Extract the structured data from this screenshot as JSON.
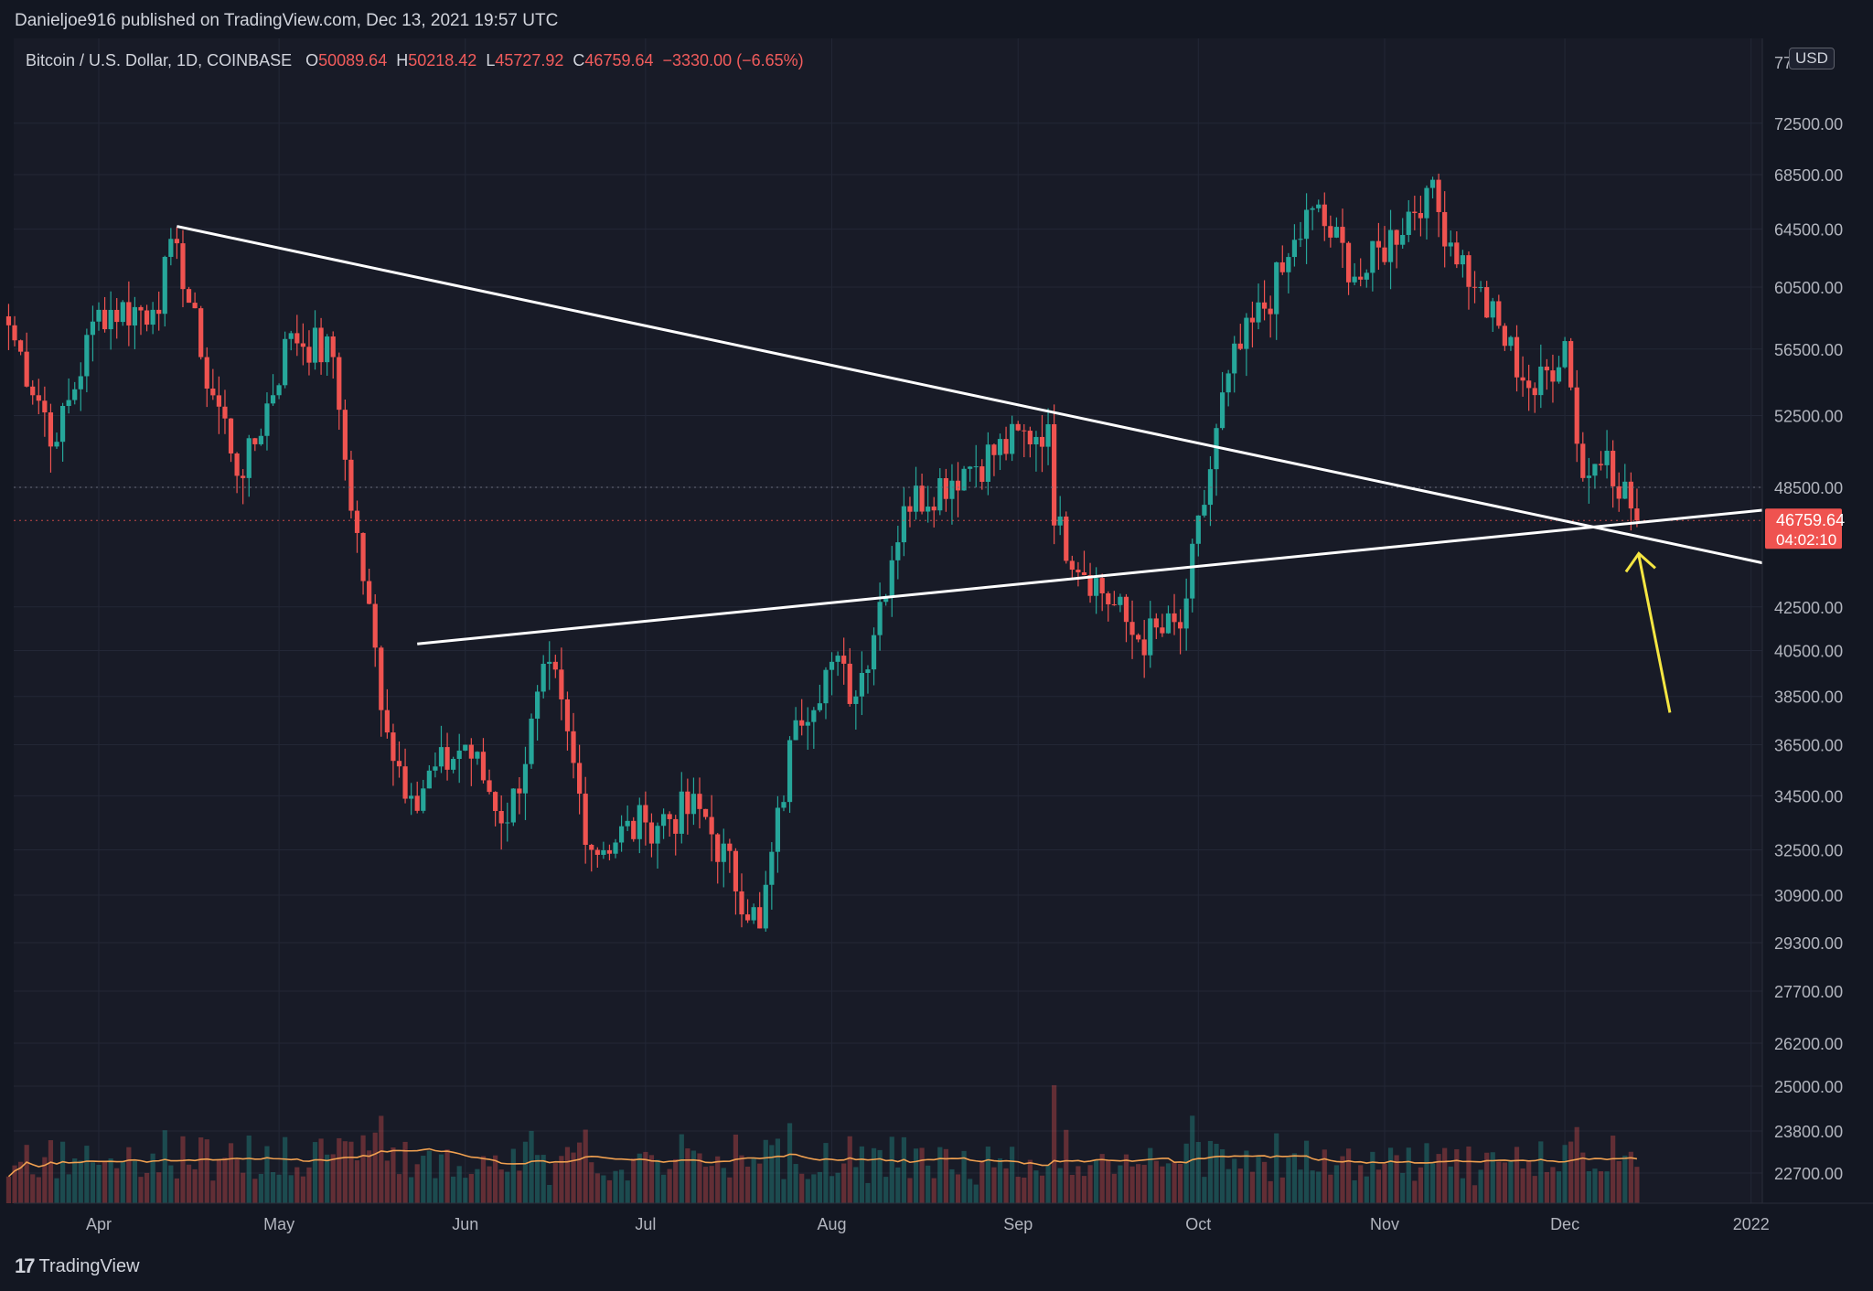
{
  "header": {
    "publisher_text": "Danieljoe916 published on TradingView.com, Dec 13, 2021 19:57 UTC"
  },
  "legend": {
    "symbol": "Bitcoin / U.S. Dollar, 1D, COINBASE",
    "o_label": "O",
    "o_value": "50089.64",
    "h_label": "H",
    "h_value": "50218.42",
    "l_label": "L",
    "l_value": "45727.92",
    "c_label": "C",
    "c_value": "46759.64",
    "change": "−3330.00 (−6.65%)"
  },
  "currency_badge": "USD",
  "footer": {
    "brand": "TradingView"
  },
  "colors": {
    "up": "#26a69a",
    "down": "#ef5350",
    "trendline": "#ffffff",
    "arrow": "#f5e642",
    "volume_ma": "#f0a050",
    "price_tag": "#ef5350"
  },
  "chart_data": {
    "type": "candlestick",
    "title": "Bitcoin / U.S. Dollar, 1D, COINBASE",
    "scale": "log",
    "y_ticks": [
      "72500.00",
      "68500.00",
      "64500.00",
      "60500.00",
      "56500.00",
      "52500.00",
      "48500.00",
      "42500.00",
      "40500.00",
      "38500.00",
      "36500.00",
      "34500.00",
      "32500.00",
      "30900.00",
      "29300.00",
      "27700.00",
      "26200.00",
      "25000.00",
      "23800.00",
      "22700.00"
    ],
    "y_ticks_partial": [
      "77..."
    ],
    "x_ticks": [
      "Apr",
      "May",
      "Jun",
      "Jul",
      "Aug",
      "Sep",
      "Oct",
      "Nov",
      "Dec",
      "2022"
    ],
    "last_price": "46759.64",
    "countdown": "04:02:10",
    "dotted_level": 48500,
    "price_anchors": [
      {
        "date": "Mar 17",
        "close": 58000
      },
      {
        "date": "Mar 25",
        "close": 51000
      },
      {
        "date": "Apr 1",
        "close": 59000
      },
      {
        "date": "Apr 10",
        "close": 59000
      },
      {
        "date": "Apr 14",
        "close": 63500
      },
      {
        "date": "Apr 18",
        "close": 56000
      },
      {
        "date": "Apr 25",
        "close": 49000
      },
      {
        "date": "May 3",
        "close": 57500
      },
      {
        "date": "May 10",
        "close": 56000
      },
      {
        "date": "May 12",
        "close": 50000
      },
      {
        "date": "May 19",
        "close": 37000
      },
      {
        "date": "May 23",
        "close": 34500
      },
      {
        "date": "Jun 1",
        "close": 36500
      },
      {
        "date": "Jun 8",
        "close": 33500
      },
      {
        "date": "Jun 15",
        "close": 40000
      },
      {
        "date": "Jun 22",
        "close": 32500
      },
      {
        "date": "Jul 1",
        "close": 33500
      },
      {
        "date": "Jul 10",
        "close": 34000
      },
      {
        "date": "Jul 20",
        "close": 29800
      },
      {
        "date": "Jul 26",
        "close": 37500
      },
      {
        "date": "Aug 1",
        "close": 40000
      },
      {
        "date": "Aug 5",
        "close": 38500
      },
      {
        "date": "Aug 13",
        "close": 47500
      },
      {
        "date": "Aug 23",
        "close": 49500
      },
      {
        "date": "Sep 6",
        "close": 52000
      },
      {
        "date": "Sep 7",
        "close": 46500
      },
      {
        "date": "Sep 21",
        "close": 41000
      },
      {
        "date": "Sep 28",
        "close": 41500
      },
      {
        "date": "Oct 6",
        "close": 55000
      },
      {
        "date": "Oct 15",
        "close": 61500
      },
      {
        "date": "Oct 20",
        "close": 66000
      },
      {
        "date": "Oct 28",
        "close": 61000
      },
      {
        "date": "Nov 8",
        "close": 67500
      },
      {
        "date": "Nov 16",
        "close": 60500
      },
      {
        "date": "Nov 26",
        "close": 53700
      },
      {
        "date": "Dec 1",
        "close": 57000
      },
      {
        "date": "Dec 4",
        "close": 49000
      },
      {
        "date": "Dec 8",
        "close": 50500
      },
      {
        "date": "Dec 13",
        "close": 46760
      }
    ],
    "trendlines": [
      {
        "from": {
          "date": "Apr 14",
          "price": 64700
        },
        "to": {
          "date": "Dec 31",
          "price": 44800
        }
      },
      {
        "from": {
          "date": "May 24",
          "price": 40800
        },
        "to": {
          "date": "Dec 31",
          "price": 47200
        }
      }
    ],
    "annotation": {
      "type": "arrow",
      "points_to": {
        "date": "Dec 13",
        "price": 46000
      }
    }
  }
}
